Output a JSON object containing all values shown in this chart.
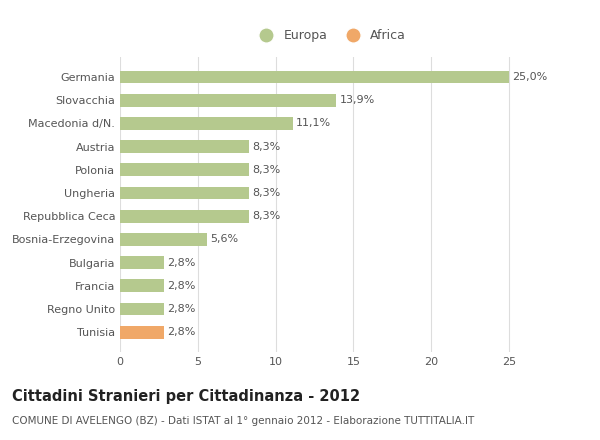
{
  "categories": [
    "Germania",
    "Slovacchia",
    "Macedonia d/N.",
    "Austria",
    "Polonia",
    "Ungheria",
    "Repubblica Ceca",
    "Bosnia-Erzegovina",
    "Bulgaria",
    "Francia",
    "Regno Unito",
    "Tunisia"
  ],
  "values": [
    25.0,
    13.9,
    11.1,
    8.3,
    8.3,
    8.3,
    8.3,
    5.6,
    2.8,
    2.8,
    2.8,
    2.8
  ],
  "labels": [
    "25,0%",
    "13,9%",
    "11,1%",
    "8,3%",
    "8,3%",
    "8,3%",
    "8,3%",
    "5,6%",
    "2,8%",
    "2,8%",
    "2,8%",
    "2,8%"
  ],
  "continents": [
    "Europa",
    "Europa",
    "Europa",
    "Europa",
    "Europa",
    "Europa",
    "Europa",
    "Europa",
    "Europa",
    "Europa",
    "Europa",
    "Africa"
  ],
  "color_europa": "#b5c98e",
  "color_africa": "#f0a868",
  "legend_europa": "Europa",
  "legend_africa": "Africa",
  "title": "Cittadini Stranieri per Cittadinanza - 2012",
  "subtitle": "COMUNE DI AVELENGO (BZ) - Dati ISTAT al 1° gennaio 2012 - Elaborazione TUTTITALIA.IT",
  "xlim": [
    0,
    27
  ],
  "xticks": [
    0,
    5,
    10,
    15,
    20,
    25
  ],
  "bg_color": "#ffffff",
  "grid_color": "#dddddd",
  "bar_height": 0.55,
  "label_fontsize": 8,
  "title_fontsize": 10.5,
  "subtitle_fontsize": 7.5,
  "tick_fontsize": 8,
  "text_color": "#555555",
  "title_color": "#222222"
}
